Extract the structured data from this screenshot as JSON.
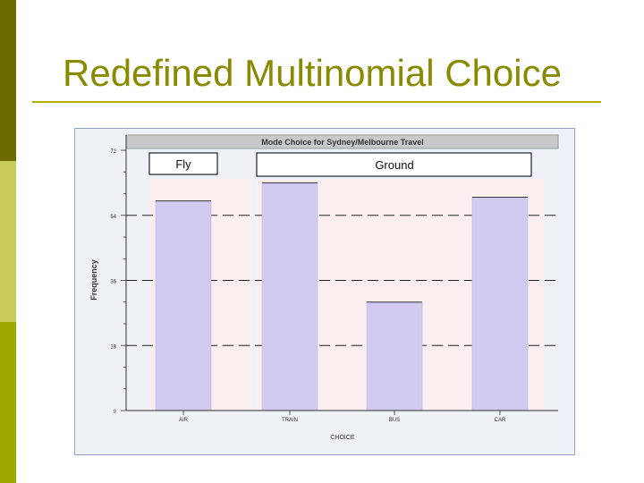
{
  "slide": {
    "title": "Redefined Multinomial Choice"
  },
  "chart_data": {
    "type": "bar",
    "title": "Mode Choice for Sydney/Melbourne Travel",
    "xlabel": "CHOICE",
    "ylabel": "Frequency",
    "categories": [
      "AIR",
      "TRAIN",
      "BUS",
      "CAR"
    ],
    "values": [
      58,
      63,
      30,
      59
    ],
    "ylim": [
      0,
      72
    ],
    "yticks": [
      0,
      18,
      36,
      54,
      72
    ],
    "ytick_labels": [
      "0",
      "18",
      "36",
      "54",
      "72"
    ],
    "groups": [
      {
        "label": "Fly",
        "categories": [
          "AIR"
        ]
      },
      {
        "label": "Ground",
        "categories": [
          "TRAIN",
          "BUS",
          "CAR"
        ]
      }
    ],
    "grid": "dashed horizontal at y ticks",
    "colors": {
      "bar": "#cfcaee",
      "panel": "#fbeeee",
      "title_bar": "#c9c9c9"
    }
  }
}
